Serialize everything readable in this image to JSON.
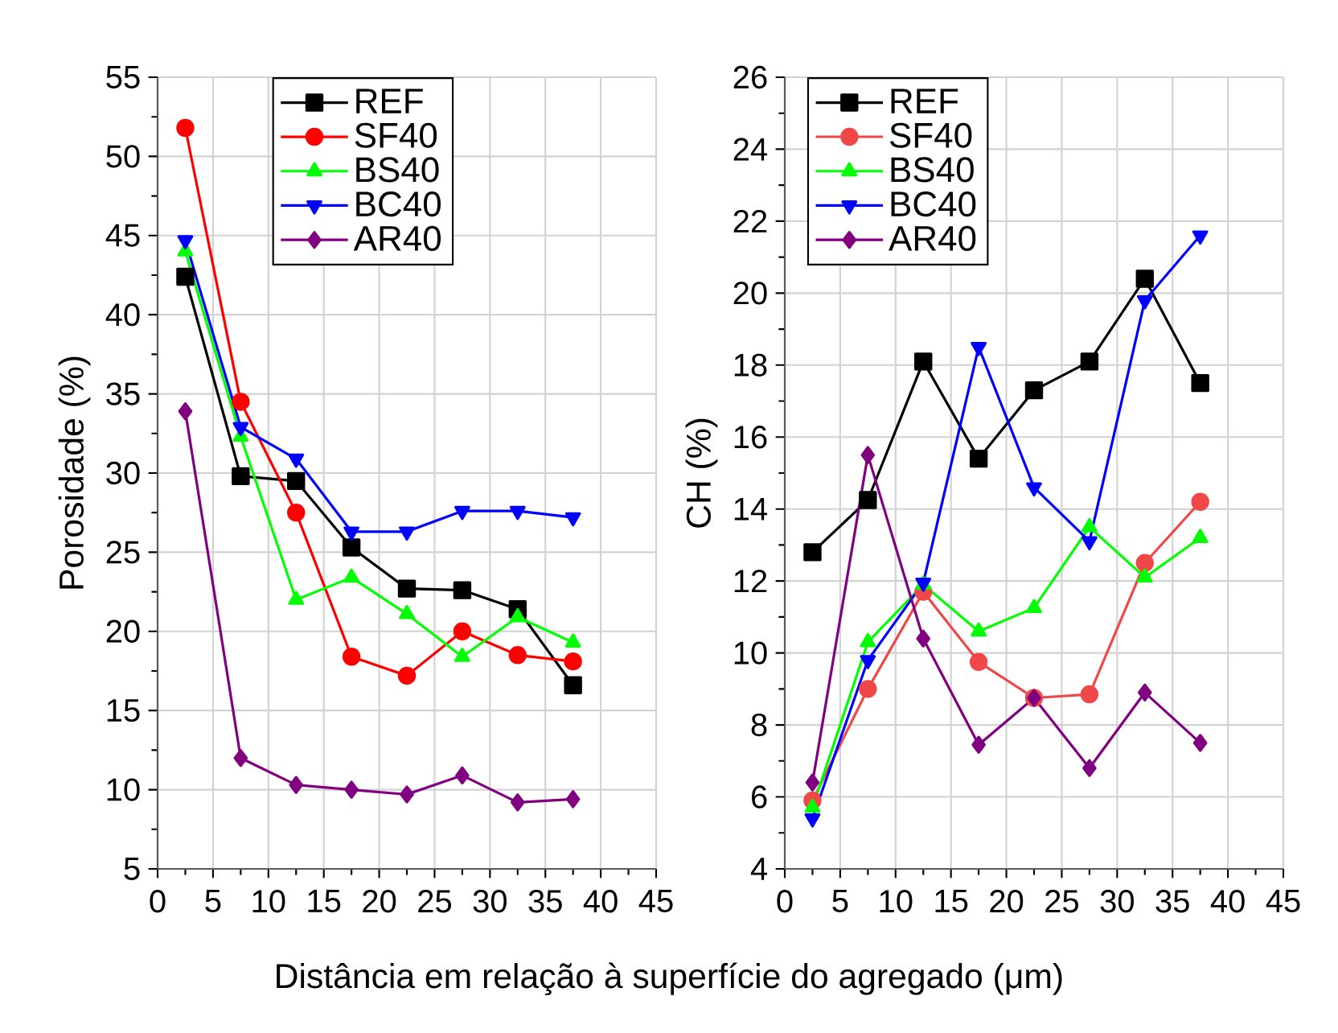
{
  "chart_data": [
    {
      "type": "line",
      "ylabel": "Porosidade (%)",
      "xlabel": "Distância em relação à superfície do agregado (μm)",
      "x": [
        2.5,
        7.5,
        12.5,
        17.5,
        22.5,
        27.5,
        32.5,
        37.5
      ],
      "xlim": [
        0,
        45
      ],
      "xticks": [
        0,
        5,
        10,
        15,
        20,
        25,
        30,
        35,
        40,
        45
      ],
      "ylim": [
        5,
        55
      ],
      "yticks": [
        5,
        10,
        15,
        20,
        25,
        30,
        35,
        40,
        45,
        50,
        55
      ],
      "grid": true,
      "legend": "top",
      "line_style": "solid",
      "series": [
        {
          "name": "REF",
          "color": "#000000",
          "marker": "square",
          "values": [
            42.4,
            29.8,
            29.5,
            25.3,
            22.7,
            22.6,
            21.4,
            16.6
          ]
        },
        {
          "name": "SF40",
          "color": "#ff0000",
          "marker": "circle",
          "values": [
            51.8,
            34.5,
            27.5,
            18.4,
            17.2,
            20.0,
            18.5,
            18.1
          ]
        },
        {
          "name": "BS40",
          "color": "#00ff00",
          "marker": "triangle",
          "values": [
            44.0,
            32.3,
            22.0,
            23.4,
            21.1,
            18.4,
            20.9,
            19.3
          ]
        },
        {
          "name": "BC40",
          "color": "#0000ff",
          "marker": "triangle-down",
          "values": [
            44.7,
            32.9,
            30.9,
            26.3,
            26.3,
            27.6,
            27.6,
            27.2
          ]
        },
        {
          "name": "AR40",
          "color": "#800080",
          "marker": "diamond",
          "values": [
            33.9,
            12.0,
            10.3,
            10.0,
            9.7,
            10.9,
            9.2,
            9.4
          ]
        }
      ]
    },
    {
      "type": "line",
      "ylabel": "CH (%)",
      "x": [
        2.5,
        7.5,
        12.5,
        17.5,
        22.5,
        27.5,
        32.5,
        37.5
      ],
      "xlim": [
        0,
        45
      ],
      "xticks": [
        0,
        5,
        10,
        15,
        20,
        25,
        30,
        35,
        40,
        45
      ],
      "ylim": [
        4,
        26
      ],
      "yticks": [
        4,
        6,
        8,
        10,
        12,
        14,
        16,
        18,
        20,
        22,
        24,
        26
      ],
      "grid": true,
      "legend": "top left",
      "line_style": "solid",
      "series": [
        {
          "name": "REF",
          "color": "#000000",
          "marker": "square",
          "values": [
            12.8,
            14.25,
            18.1,
            15.4,
            17.3,
            18.1,
            20.4,
            17.5
          ]
        },
        {
          "name": "SF40",
          "color": "#f04848",
          "marker": "circle",
          "values": [
            5.9,
            9.0,
            11.7,
            9.75,
            8.75,
            8.85,
            12.5,
            14.2
          ]
        },
        {
          "name": "BS40",
          "color": "#00ff00",
          "marker": "triangle",
          "values": [
            5.7,
            10.3,
            11.9,
            10.6,
            11.25,
            13.5,
            12.1,
            13.2
          ]
        },
        {
          "name": "BC40",
          "color": "#0000ff",
          "marker": "triangle-down",
          "values": [
            5.4,
            9.8,
            11.95,
            18.5,
            14.6,
            13.1,
            19.8,
            21.6
          ]
        },
        {
          "name": "AR40",
          "color": "#800080",
          "marker": "diamond",
          "values": [
            6.4,
            15.5,
            10.4,
            7.45,
            8.75,
            6.8,
            8.9,
            7.5
          ]
        }
      ]
    }
  ]
}
